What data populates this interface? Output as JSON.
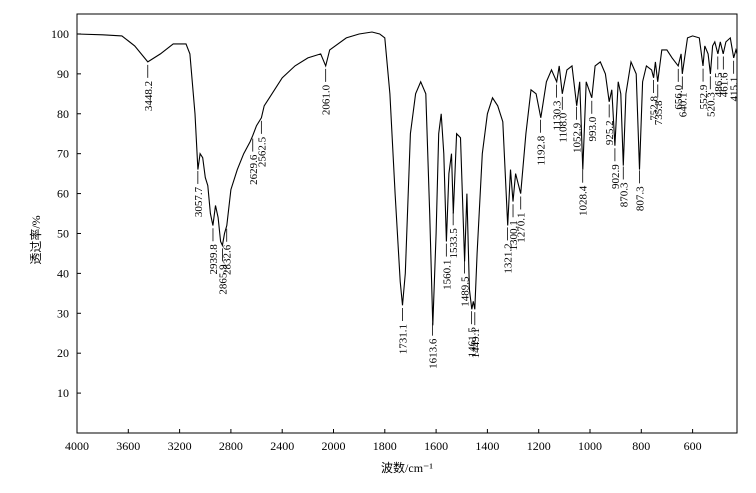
{
  "chart_data": {
    "type": "line",
    "xlabel": "波数/cm⁻¹",
    "ylabel": "透过率/%",
    "color": "#000000",
    "xlim": [
      4000,
      400
    ],
    "ylim": [
      0,
      105
    ],
    "xticks": [
      4000,
      3600,
      3200,
      2800,
      2400,
      2000,
      1800,
      1600,
      1400,
      1200,
      1000,
      800,
      600
    ],
    "yticks": [
      10,
      20,
      30,
      40,
      50,
      60,
      70,
      80,
      90,
      100
    ],
    "x": [
      4000,
      3800,
      3650,
      3550,
      3448,
      3350,
      3250,
      3150,
      3120,
      3080,
      3057,
      3040,
      3020,
      3000,
      2980,
      2960,
      2940,
      2920,
      2900,
      2880,
      2866,
      2850,
      2832,
      2800,
      2750,
      2700,
      2650,
      2630,
      2600,
      2562,
      2540,
      2500,
      2400,
      2300,
      2200,
      2100,
      2061,
      2030,
      1950,
      1900,
      1850,
      1820,
      1800,
      1780,
      1760,
      1740,
      1731,
      1720,
      1700,
      1680,
      1660,
      1640,
      1625,
      1613,
      1600,
      1590,
      1580,
      1570,
      1560,
      1550,
      1540,
      1533,
      1520,
      1505,
      1489,
      1480,
      1470,
      1461,
      1455,
      1449,
      1440,
      1420,
      1400,
      1380,
      1360,
      1340,
      1321,
      1310,
      1300,
      1290,
      1270,
      1250,
      1230,
      1210,
      1192,
      1170,
      1150,
      1130,
      1120,
      1108,
      1090,
      1070,
      1052,
      1040,
      1028,
      1015,
      993,
      980,
      960,
      940,
      925,
      915,
      903,
      890,
      880,
      870,
      860,
      840,
      820,
      807,
      795,
      780,
      760,
      752,
      745,
      736,
      720,
      700,
      680,
      656,
      645,
      640,
      620,
      600,
      570,
      553,
      545,
      530,
      520,
      510,
      500,
      486,
      475,
      462,
      450,
      430,
      415,
      405,
      400
    ],
    "values": [
      100,
      99.8,
      99.5,
      97,
      93,
      95,
      97.5,
      97.5,
      95,
      80,
      66,
      70,
      69,
      64,
      62,
      55,
      52,
      57,
      54,
      48,
      47,
      50,
      52,
      61,
      66,
      70,
      73,
      74.5,
      77,
      79,
      82,
      84,
      89,
      92,
      94,
      95,
      92,
      96,
      99,
      100,
      100.5,
      100,
      99,
      85,
      60,
      38,
      32,
      40,
      75,
      85,
      88,
      85,
      55,
      27,
      50,
      75,
      80,
      70,
      48,
      65,
      70,
      55,
      75,
      74,
      43,
      60,
      36,
      31,
      33,
      31,
      45,
      70,
      80,
      84,
      82,
      78,
      52,
      66,
      58,
      65,
      60,
      75,
      86,
      85,
      79,
      88,
      91,
      88,
      92,
      85,
      91,
      92,
      82,
      88,
      66,
      88,
      84,
      92,
      93,
      90,
      83,
      86,
      72,
      88,
      85,
      67,
      85,
      93,
      90,
      66,
      88,
      92,
      91,
      89,
      93,
      88,
      96,
      96,
      94,
      92,
      95,
      90,
      99,
      99.5,
      99,
      92,
      97,
      95,
      90,
      97,
      98,
      95,
      98,
      95,
      98,
      99,
      94,
      96,
      95
    ],
    "annotations": [
      {
        "value": 3448.2,
        "label": "3448.2"
      },
      {
        "value": 3057.7,
        "label": "3057.7"
      },
      {
        "value": 2939.8,
        "label": "2939.8"
      },
      {
        "value": 2865.9,
        "label": "2865.9"
      },
      {
        "value": 2832.6,
        "label": "2832.6"
      },
      {
        "value": 2629.6,
        "label": "2629.6"
      },
      {
        "value": 2562.5,
        "label": "2562.5"
      },
      {
        "value": 2061.0,
        "label": "2061.0"
      },
      {
        "value": 1731.1,
        "label": "1731.1"
      },
      {
        "value": 1613.6,
        "label": "1613.6"
      },
      {
        "value": 1560.1,
        "label": "1560.1"
      },
      {
        "value": 1533.5,
        "label": "1533.5"
      },
      {
        "value": 1489.5,
        "label": "1489.5"
      },
      {
        "value": 1461.5,
        "label": "1461.5"
      },
      {
        "value": 1449.1,
        "label": "1449.1"
      },
      {
        "value": 1321.2,
        "label": "1321.2"
      },
      {
        "value": 1300.1,
        "label": "1300.1"
      },
      {
        "value": 1270.1,
        "label": "1270.1"
      },
      {
        "value": 1192.8,
        "label": "1192.8"
      },
      {
        "value": 1130.3,
        "label": "1130.3"
      },
      {
        "value": 1108.0,
        "label": "1108.0"
      },
      {
        "value": 1052.9,
        "label": "1052.9"
      },
      {
        "value": 1028.4,
        "label": "1028.4"
      },
      {
        "value": 993.0,
        "label": "993.0"
      },
      {
        "value": 925.2,
        "label": "925.2"
      },
      {
        "value": 902.9,
        "label": "902.9"
      },
      {
        "value": 870.3,
        "label": "870.3"
      },
      {
        "value": 807.3,
        "label": "807.3"
      },
      {
        "value": 752.8,
        "label": "752.8"
      },
      {
        "value": 735.8,
        "label": "735.8"
      },
      {
        "value": 656.0,
        "label": "656.0"
      },
      {
        "value": 640.1,
        "label": "640.1"
      },
      {
        "value": 552.9,
        "label": "552.9"
      },
      {
        "value": 520.3,
        "label": "520.3"
      },
      {
        "value": 486.5,
        "label": "486.5"
      },
      {
        "value": 461.6,
        "label": "461.6"
      },
      {
        "value": 415.1,
        "label": "415.1"
      }
    ]
  }
}
